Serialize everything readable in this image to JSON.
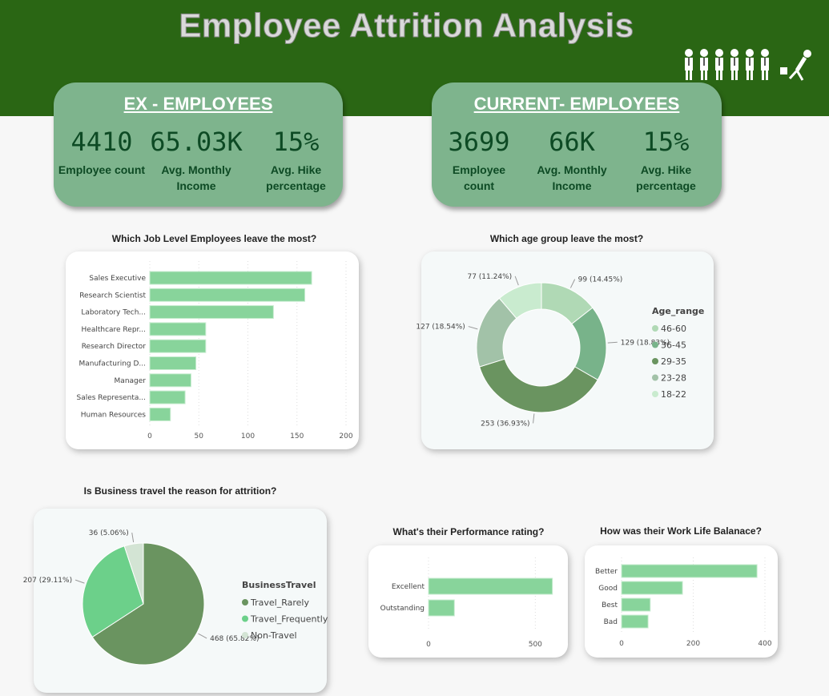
{
  "header": {
    "title": "Employee Attrition Analysis",
    "icon": "walking-people-icon"
  },
  "ex": {
    "title": "EX - EMPLOYEES",
    "count": "4410",
    "count_label": "Employee count",
    "income": "65.03K",
    "income_label": "Avg. Monthly Income",
    "hike": "15%",
    "hike_label": "Avg. Hike percentage"
  },
  "current": {
    "title": "CURRENT- EMPLOYEES",
    "count": "3699",
    "count_label": "Employee count",
    "income": "66K",
    "income_label": "Avg. Monthly Income",
    "hike": "15%",
    "hike_label": "Avg. Hike percentage"
  },
  "colors": {
    "header": "#2a6614",
    "kpi": "#7eb48d",
    "bar": "#88d49b"
  },
  "chart_data": [
    {
      "type": "bar",
      "orientation": "horizontal",
      "title": "Which Job Level Employees leave the most?",
      "categories": [
        "Sales Executive",
        "Research Scientist",
        "Laboratory Tech...",
        "Healthcare Repr...",
        "Research Director",
        "Manufacturing D...",
        "Manager",
        "Sales Representa...",
        "Human Resources"
      ],
      "values": [
        165,
        158,
        126,
        57,
        57,
        47,
        42,
        36,
        21
      ],
      "xlim": [
        0,
        200
      ],
      "ticks": [
        0,
        50,
        100,
        150,
        200
      ],
      "grid": true
    },
    {
      "type": "pie",
      "donut": true,
      "title": "Which age group leave the most?",
      "legend_title": "Age_range",
      "legend": "right",
      "slices": [
        {
          "name": "46-60",
          "value": 99,
          "label": "99 (14.45%)",
          "color": "#b0d9b5"
        },
        {
          "name": "36-45",
          "value": 129,
          "label": "129 (18.83%)",
          "color": "#78b38a"
        },
        {
          "name": "29-35",
          "value": 253,
          "label": "253 (36.93%)",
          "color": "#6a9460"
        },
        {
          "name": "23-28",
          "value": 127,
          "label": "127 (18.54%)",
          "color": "#a2c2a8"
        },
        {
          "name": "18-22",
          "value": 77,
          "label": "77 (11.24%)",
          "color": "#c9ebcf"
        }
      ]
    },
    {
      "type": "pie",
      "title": "Is Business travel the reason for attrition?",
      "legend_title": "BusinessTravel",
      "legend": "right",
      "slices": [
        {
          "name": "Travel_Rarely",
          "value": 468,
          "label": "468 (65.82%)",
          "color": "#6a9460"
        },
        {
          "name": "Travel_Frequently",
          "value": 207,
          "label": "207 (29.11%)",
          "color": "#6cd08a"
        },
        {
          "name": "Non-Travel",
          "value": 36,
          "label": "36 (5.06%)",
          "color": "#d3e4d4"
        }
      ]
    },
    {
      "type": "bar",
      "orientation": "horizontal",
      "title": "What's their Performance rating?",
      "categories": [
        "Excellent",
        "Outstanding"
      ],
      "values": [
        580,
        121
      ],
      "xlim": [
        0,
        600
      ],
      "ticks": [
        0,
        500
      ],
      "grid": true
    },
    {
      "type": "bar",
      "orientation": "horizontal",
      "title": "How was their Work Life Balanace?",
      "categories": [
        "Better",
        "Good",
        "Best",
        "Bad"
      ],
      "values": [
        378,
        170,
        80,
        74
      ],
      "xlim": [
        0,
        400
      ],
      "ticks": [
        0,
        200,
        400
      ],
      "grid": true
    }
  ]
}
